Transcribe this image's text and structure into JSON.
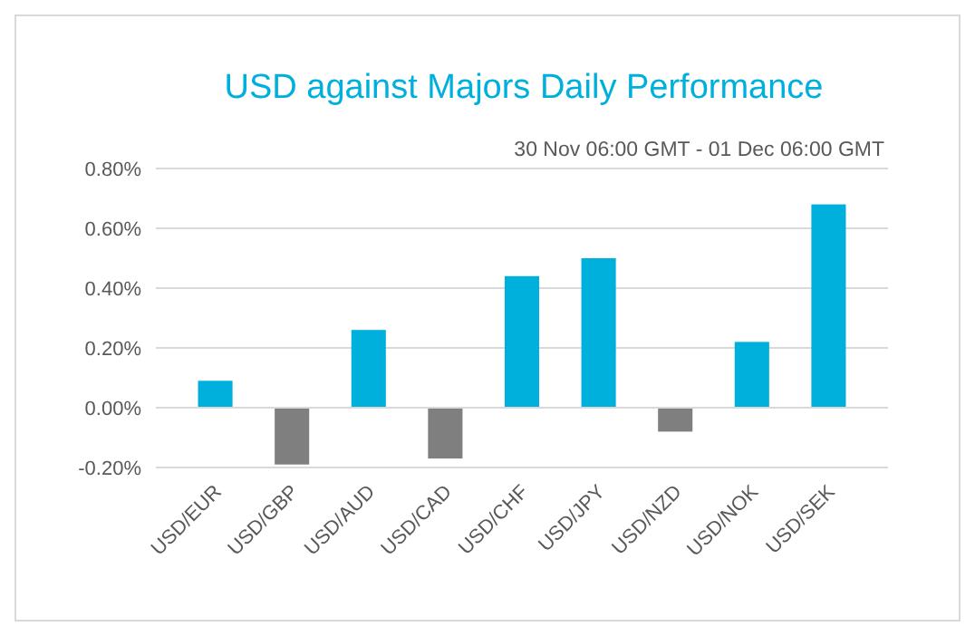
{
  "chart_data": {
    "type": "bar",
    "title": "USD against Majors Daily Performance",
    "subtitle": "30 Nov 06:00 GMT -  01 Dec 06:00 GMT",
    "categories": [
      "USD/EUR",
      "USD/GBP",
      "USD/AUD",
      "USD/CAD",
      "USD/CHF",
      "USD/JPY",
      "USD/NZD",
      "USD/NOK",
      "USD/SEK"
    ],
    "values": [
      0.09,
      -0.19,
      0.26,
      -0.17,
      0.44,
      0.5,
      -0.08,
      0.22,
      0.68
    ],
    "colors": [
      "#00b0dc",
      "#7f7f7f",
      "#00b0dc",
      "#7f7f7f",
      "#00b0dc",
      "#00b0dc",
      "#7f7f7f",
      "#00b0dc",
      "#00b0dc"
    ],
    "ylim": [
      -0.2,
      0.8
    ],
    "yticks": [
      {
        "value": -0.2,
        "label": "-0.20%"
      },
      {
        "value": 0,
        "label": "0.00%"
      },
      {
        "value": 0.2,
        "label": "0.20%"
      },
      {
        "value": 0.4,
        "label": "0.40%"
      },
      {
        "value": 0.6,
        "label": "0.60%"
      },
      {
        "value": 0.8,
        "label": "0.80%"
      }
    ],
    "grid": "y"
  }
}
